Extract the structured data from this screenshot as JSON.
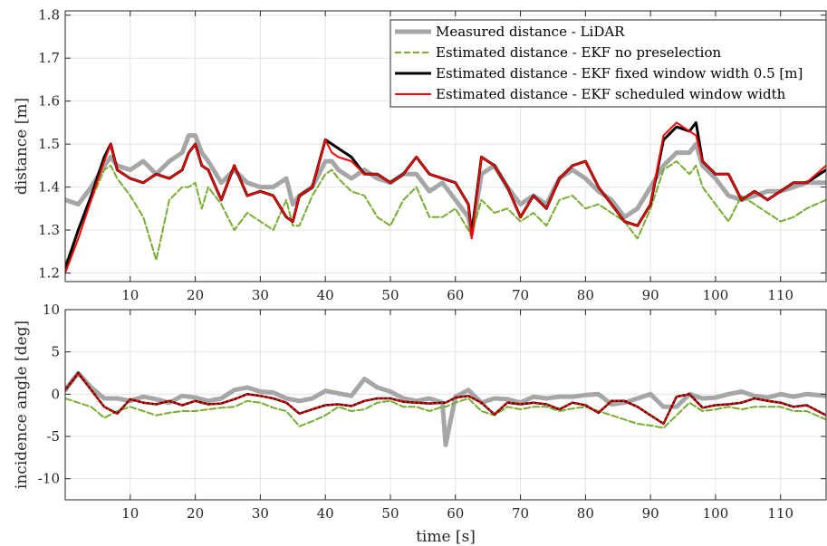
{
  "chart_data": [
    {
      "type": "line",
      "panel": "distance",
      "xlabel": "",
      "ylabel": "distance [m]",
      "xlim": [
        0,
        117
      ],
      "ylim": [
        1.18,
        1.81
      ],
      "xticks": [
        10,
        20,
        30,
        40,
        50,
        60,
        70,
        80,
        90,
        100,
        110
      ],
      "yticks": [
        1.2,
        1.3,
        1.4,
        1.5,
        1.6,
        1.7,
        1.8
      ],
      "ytick_labels": [
        "1.2",
        "1.3",
        "1.4",
        "1.5",
        "1.6",
        "1.7",
        "1.8"
      ],
      "grid": true,
      "legend_position": "top-right",
      "x": [
        0,
        2,
        4,
        6,
        7,
        8,
        10,
        12,
        14,
        16,
        18,
        19,
        20,
        21,
        22,
        24,
        26,
        28,
        30,
        32,
        34,
        35,
        36,
        38,
        40,
        41,
        42,
        44,
        46,
        48,
        50,
        52,
        54,
        56,
        58,
        60,
        62,
        62.5,
        64,
        66,
        68,
        70,
        72,
        74,
        76,
        78,
        80,
        82,
        84,
        86,
        88,
        90,
        92,
        94,
        96,
        97,
        98,
        100,
        102,
        104,
        106,
        108,
        110,
        112,
        114,
        117
      ],
      "series": [
        {
          "name": "Measured distance - LiDAR",
          "color": "#a6a6a6",
          "style": "solid",
          "width": 5,
          "values": [
            1.37,
            1.36,
            1.4,
            1.45,
            1.47,
            1.45,
            1.44,
            1.46,
            1.43,
            1.46,
            1.48,
            1.52,
            1.52,
            1.48,
            1.46,
            1.41,
            1.44,
            1.41,
            1.4,
            1.4,
            1.42,
            1.36,
            1.38,
            1.4,
            1.46,
            1.46,
            1.44,
            1.42,
            1.44,
            1.42,
            1.41,
            1.43,
            1.43,
            1.39,
            1.41,
            1.37,
            1.33,
            1.29,
            1.43,
            1.45,
            1.4,
            1.36,
            1.38,
            1.36,
            1.42,
            1.44,
            1.42,
            1.39,
            1.37,
            1.33,
            1.35,
            1.4,
            1.45,
            1.48,
            1.48,
            1.5,
            1.45,
            1.42,
            1.38,
            1.37,
            1.38,
            1.39,
            1.39,
            1.4,
            1.41,
            1.41
          ]
        },
        {
          "name": "Estimated distance - EKF no preselection",
          "color": "#77ac30",
          "style": "dashed",
          "width": 2,
          "values": [
            1.22,
            1.3,
            1.37,
            1.44,
            1.45,
            1.42,
            1.38,
            1.33,
            1.23,
            1.37,
            1.4,
            1.4,
            1.41,
            1.35,
            1.4,
            1.36,
            1.3,
            1.34,
            1.32,
            1.3,
            1.37,
            1.31,
            1.31,
            1.38,
            1.43,
            1.44,
            1.42,
            1.39,
            1.38,
            1.33,
            1.31,
            1.37,
            1.4,
            1.33,
            1.33,
            1.35,
            1.3,
            1.29,
            1.37,
            1.34,
            1.35,
            1.32,
            1.34,
            1.31,
            1.37,
            1.38,
            1.35,
            1.36,
            1.34,
            1.32,
            1.28,
            1.35,
            1.44,
            1.46,
            1.43,
            1.45,
            1.4,
            1.36,
            1.32,
            1.38,
            1.36,
            1.34,
            1.32,
            1.33,
            1.35,
            1.37
          ]
        },
        {
          "name": "Estimated distance - EKF fixed window width 0.5 [m]",
          "color": "#000000",
          "style": "solid",
          "width": 3,
          "values": [
            1.21,
            1.3,
            1.38,
            1.47,
            1.5,
            1.44,
            1.42,
            1.41,
            1.43,
            1.42,
            1.44,
            1.48,
            1.5,
            1.45,
            1.44,
            1.37,
            1.45,
            1.38,
            1.39,
            1.38,
            1.33,
            1.32,
            1.38,
            1.4,
            1.51,
            1.5,
            1.49,
            1.47,
            1.43,
            1.43,
            1.41,
            1.43,
            1.47,
            1.43,
            1.42,
            1.41,
            1.36,
            1.29,
            1.47,
            1.45,
            1.4,
            1.33,
            1.38,
            1.35,
            1.42,
            1.45,
            1.46,
            1.4,
            1.36,
            1.32,
            1.31,
            1.36,
            1.51,
            1.54,
            1.53,
            1.55,
            1.46,
            1.43,
            1.43,
            1.37,
            1.39,
            1.37,
            1.39,
            1.41,
            1.41,
            1.44
          ]
        },
        {
          "name": "Estimated distance - EKF scheduled window width",
          "color": "#ff0000",
          "style": "solid",
          "width": 2,
          "values": [
            1.2,
            1.28,
            1.37,
            1.46,
            1.5,
            1.44,
            1.42,
            1.41,
            1.43,
            1.42,
            1.44,
            1.48,
            1.5,
            1.45,
            1.44,
            1.37,
            1.45,
            1.38,
            1.39,
            1.38,
            1.33,
            1.32,
            1.38,
            1.4,
            1.51,
            1.48,
            1.47,
            1.46,
            1.43,
            1.43,
            1.41,
            1.43,
            1.47,
            1.43,
            1.42,
            1.41,
            1.36,
            1.28,
            1.47,
            1.45,
            1.4,
            1.33,
            1.38,
            1.35,
            1.42,
            1.45,
            1.46,
            1.4,
            1.36,
            1.32,
            1.31,
            1.36,
            1.52,
            1.55,
            1.53,
            1.52,
            1.46,
            1.43,
            1.43,
            1.37,
            1.39,
            1.37,
            1.39,
            1.41,
            1.41,
            1.45
          ]
        }
      ]
    },
    {
      "type": "line",
      "panel": "incidence-angle",
      "xlabel": "time [s]",
      "ylabel": "incidence angle [deg]",
      "xlim": [
        0,
        117
      ],
      "ylim": [
        -12.5,
        10
      ],
      "xticks": [
        10,
        20,
        30,
        40,
        50,
        60,
        70,
        80,
        90,
        100,
        110
      ],
      "yticks": [
        -10,
        -5,
        0,
        5,
        10
      ],
      "ytick_labels": [
        "-10",
        "-5",
        "0",
        "5",
        "10"
      ],
      "grid": true,
      "x": [
        0,
        2,
        4,
        6,
        8,
        10,
        12,
        14,
        16,
        18,
        20,
        22,
        24,
        26,
        28,
        30,
        32,
        34,
        36,
        38,
        40,
        42,
        44,
        46,
        48,
        50,
        52,
        54,
        56,
        58,
        58.5,
        60,
        62,
        64,
        66,
        68,
        70,
        72,
        74,
        76,
        78,
        80,
        82,
        84,
        86,
        88,
        90,
        92,
        94,
        96,
        98,
        100,
        102,
        104,
        106,
        108,
        110,
        112,
        114,
        117
      ],
      "series": [
        {
          "name": "Measured distance - LiDAR",
          "color": "#a6a6a6",
          "style": "solid",
          "width": 5,
          "values": [
            0.5,
            2.5,
            0.8,
            -0.5,
            -0.5,
            -0.8,
            -0.3,
            -0.6,
            -1.0,
            -0.2,
            -0.4,
            -0.8,
            -0.5,
            0.5,
            0.8,
            0.3,
            0.2,
            -0.5,
            -0.8,
            -0.5,
            0.4,
            0.1,
            -0.2,
            1.8,
            0.8,
            0.3,
            -0.5,
            -0.8,
            -0.5,
            -1.0,
            -6.0,
            -0.3,
            0.5,
            -1.0,
            -0.5,
            -0.6,
            -1.0,
            -0.3,
            -0.5,
            -0.3,
            -0.3,
            -0.1,
            0.0,
            -1.2,
            -1.0,
            -0.5,
            0.0,
            -1.5,
            -1.5,
            0.0,
            -0.5,
            -0.4,
            0.0,
            0.3,
            -0.2,
            -0.4,
            0.0,
            -0.3,
            0.0,
            -0.2
          ]
        },
        {
          "name": "Estimated distance - EKF no preselection",
          "color": "#77ac30",
          "style": "dashed",
          "width": 2,
          "values": [
            -0.5,
            -1.0,
            -1.5,
            -2.8,
            -2.0,
            -1.5,
            -2.0,
            -2.5,
            -2.2,
            -2.0,
            -2.0,
            -1.8,
            -1.6,
            -1.5,
            -0.8,
            -1.0,
            -1.6,
            -2.0,
            -3.8,
            -3.2,
            -2.5,
            -1.5,
            -2.0,
            -1.8,
            -1.0,
            -0.8,
            -1.5,
            -1.5,
            -2.0,
            -1.5,
            -1.5,
            -1.0,
            -0.5,
            -2.0,
            -2.5,
            -1.5,
            -1.8,
            -1.5,
            -1.5,
            -2.0,
            -1.7,
            -1.5,
            -2.0,
            -2.5,
            -3.0,
            -3.5,
            -3.7,
            -4.0,
            -2.5,
            -1.0,
            -2.0,
            -1.8,
            -1.5,
            -1.8,
            -1.5,
            -1.5,
            -1.5,
            -2.0,
            -2.0,
            -3.0
          ]
        },
        {
          "name": "Estimated distance - EKF fixed window width 0.5 [m]",
          "color": "#000000",
          "style": "solid",
          "width": 2.5,
          "values": [
            0.5,
            2.5,
            0.5,
            -1.5,
            -2.3,
            -0.6,
            -1.0,
            -1.2,
            -0.8,
            -1.3,
            -0.8,
            -1.2,
            -1.1,
            -0.6,
            0.0,
            -0.2,
            -0.5,
            -1.0,
            -2.3,
            -1.8,
            -1.3,
            -1.2,
            -1.4,
            -0.8,
            -0.5,
            -0.5,
            -0.9,
            -1.0,
            -1.1,
            -1.0,
            -1.0,
            -0.4,
            -0.2,
            -1.0,
            -2.4,
            -1.0,
            -1.2,
            -1.0,
            -1.2,
            -1.8,
            -1.0,
            -1.3,
            -2.2,
            -0.8,
            -0.8,
            -1.5,
            -2.5,
            -3.5,
            -0.3,
            0.0,
            -1.6,
            -1.3,
            -1.2,
            -1.0,
            -0.5,
            -0.8,
            -1.0,
            -1.5,
            -1.3,
            -2.5
          ]
        },
        {
          "name": "Estimated distance - EKF scheduled window width",
          "color": "#ff0000",
          "style": "dotted",
          "width": 2,
          "values": [
            0.5,
            2.5,
            0.5,
            -1.5,
            -2.3,
            -0.6,
            -1.0,
            -1.2,
            -0.8,
            -1.3,
            -0.8,
            -1.2,
            -1.1,
            -0.6,
            0.0,
            -0.2,
            -0.5,
            -1.0,
            -2.3,
            -1.8,
            -1.3,
            -1.2,
            -1.4,
            -0.8,
            -0.5,
            -0.5,
            -0.9,
            -1.0,
            -1.1,
            -1.0,
            -1.0,
            -0.4,
            -0.2,
            -1.0,
            -2.4,
            -1.0,
            -1.2,
            -1.0,
            -1.2,
            -1.8,
            -1.0,
            -1.3,
            -2.2,
            -0.8,
            -0.8,
            -1.5,
            -2.5,
            -3.5,
            -0.3,
            0.0,
            -1.6,
            -1.3,
            -1.2,
            -1.0,
            -0.5,
            -0.8,
            -1.0,
            -1.5,
            -1.3,
            -2.5
          ]
        }
      ]
    }
  ]
}
